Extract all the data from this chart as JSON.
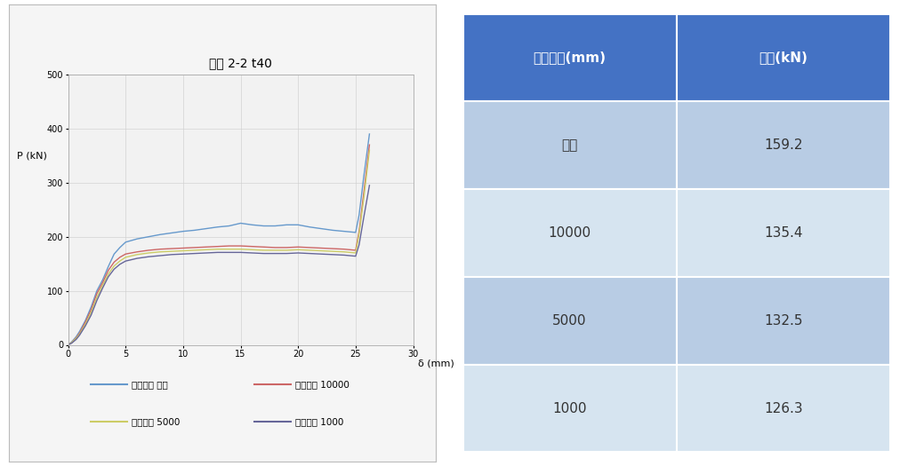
{
  "chart_title": "볼트 2-2 t40",
  "xlabel": "δ (mm)",
  "ylabel": "P (kN)",
  "xlim": [
    0,
    30
  ],
  "ylim": [
    0,
    500
  ],
  "xticks": [
    0,
    5,
    10,
    15,
    20,
    25,
    30
  ],
  "yticks": [
    0,
    100,
    200,
    300,
    400,
    500
  ],
  "lines": {
    "무한": {
      "color": "#6699CC",
      "x": [
        0,
        0.3,
        0.7,
        1,
        1.5,
        2,
        2.5,
        3,
        3.5,
        4,
        4.5,
        5,
        6,
        7,
        8,
        9,
        10,
        11,
        12,
        13,
        14,
        15,
        16,
        17,
        18,
        19,
        20,
        21,
        22,
        23,
        24,
        24.5,
        25,
        25.3,
        25.7,
        26.2
      ],
      "y": [
        0,
        5,
        15,
        25,
        45,
        70,
        100,
        120,
        145,
        168,
        180,
        190,
        196,
        200,
        204,
        207,
        210,
        212,
        215,
        218,
        220,
        225,
        222,
        220,
        220,
        222,
        222,
        218,
        215,
        212,
        210,
        209,
        208,
        240,
        310,
        390
      ]
    },
    "10000": {
      "color": "#CC6666",
      "x": [
        0,
        0.3,
        0.7,
        1,
        1.5,
        2,
        2.5,
        3,
        3.5,
        4,
        4.5,
        5,
        6,
        7,
        8,
        9,
        10,
        11,
        12,
        13,
        14,
        15,
        16,
        17,
        18,
        19,
        20,
        21,
        22,
        23,
        24,
        24.5,
        25,
        25.3,
        25.7,
        26.2
      ],
      "y": [
        0,
        4,
        13,
        22,
        42,
        65,
        95,
        115,
        138,
        153,
        162,
        168,
        172,
        175,
        177,
        178,
        179,
        180,
        181,
        182,
        183,
        183,
        182,
        181,
        180,
        180,
        181,
        180,
        179,
        178,
        177,
        176,
        175,
        210,
        280,
        370
      ]
    },
    "5000": {
      "color": "#CCCC66",
      "x": [
        0,
        0.3,
        0.7,
        1,
        1.5,
        2,
        2.5,
        3,
        3.5,
        4,
        4.5,
        5,
        6,
        7,
        8,
        9,
        10,
        11,
        12,
        13,
        14,
        15,
        16,
        17,
        18,
        19,
        20,
        21,
        22,
        23,
        24,
        24.5,
        25,
        25.3,
        25.7,
        26.2
      ],
      "y": [
        0,
        4,
        12,
        20,
        38,
        60,
        88,
        110,
        131,
        146,
        155,
        162,
        167,
        170,
        172,
        173,
        174,
        175,
        176,
        177,
        177,
        177,
        176,
        175,
        175,
        175,
        176,
        175,
        174,
        173,
        172,
        171,
        170,
        205,
        270,
        360
      ]
    },
    "1000": {
      "color": "#666699",
      "x": [
        0,
        0.3,
        0.7,
        1,
        1.5,
        2,
        2.5,
        3,
        3.5,
        4,
        4.5,
        5,
        6,
        7,
        8,
        9,
        10,
        11,
        12,
        13,
        14,
        15,
        16,
        17,
        18,
        19,
        20,
        21,
        22,
        23,
        24,
        24.5,
        25,
        25.3,
        25.7,
        26.2
      ],
      "y": [
        0,
        3,
        10,
        18,
        35,
        55,
        82,
        105,
        126,
        140,
        149,
        155,
        160,
        163,
        165,
        167,
        168,
        169,
        170,
        171,
        171,
        171,
        170,
        169,
        169,
        169,
        170,
        169,
        168,
        167,
        166,
        165,
        164,
        185,
        235,
        295
      ]
    }
  },
  "legend_labels": [
    "곡률반경 무한",
    "곡률반경 10000",
    "곡률반경 5000",
    "곡률반경 1000"
  ],
  "table_header": [
    "곡률반경(mm)",
    "하중(kN)"
  ],
  "table_data": [
    [
      "무한",
      "159.2"
    ],
    [
      "10000",
      "135.4"
    ],
    [
      "5000",
      "132.5"
    ],
    [
      "1000",
      "126.3"
    ]
  ],
  "header_color": "#4472C4",
  "row_colors": [
    "#B8CCE4",
    "#D6E4F0",
    "#B8CCE4",
    "#D6E4F0"
  ],
  "header_text_color": "#FFFFFF",
  "cell_text_color": "#333333",
  "outer_bg": "#FFFFFF",
  "plot_bg": "#F2F2F2",
  "grid_color": "#CCCCCC",
  "panel_bg": "#F5F5F5",
  "panel_edge": "#BBBBBB"
}
